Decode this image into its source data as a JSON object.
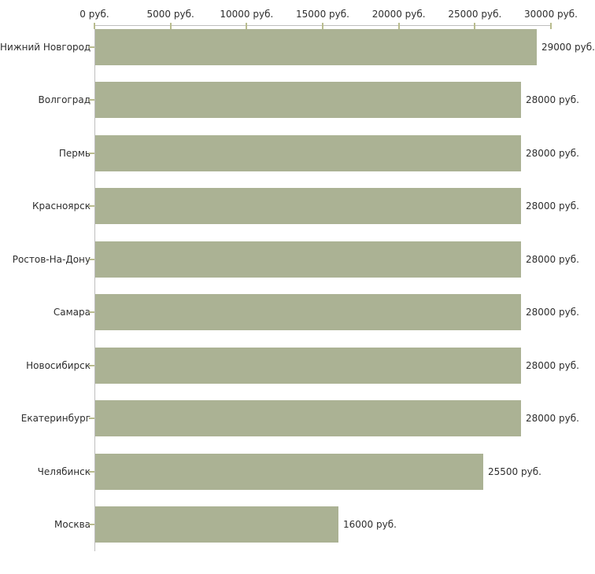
{
  "chart_data": {
    "type": "bar",
    "orientation": "horizontal",
    "title": "",
    "categories": [
      "Нижний Новгород",
      "Волгоград",
      "Пермь",
      "Красноярск",
      "Ростов-На-Дону",
      "Самара",
      "Новосибирск",
      "Екатеринбург",
      "Челябинск",
      "Москва"
    ],
    "values": [
      29000,
      28000,
      28000,
      28000,
      28000,
      28000,
      28000,
      28000,
      25500,
      16000
    ],
    "value_labels": [
      "29000 руб.",
      "28000 руб.",
      "28000 руб.",
      "28000 руб.",
      "28000 руб.",
      "28000 руб.",
      "28000 руб.",
      "28000 руб.",
      "25500 руб.",
      "16000 руб."
    ],
    "x_axis": {
      "position": "top",
      "min": 0,
      "max": 30000,
      "tick_step": 5000,
      "tick_labels": [
        "0 руб.",
        "5000 руб.",
        "10000 руб.",
        "15000 руб.",
        "20000 руб.",
        "25000 руб.",
        "30000 руб."
      ]
    },
    "unit": "руб.",
    "grid": false,
    "legend": false,
    "colors": {
      "bar": "#abb294",
      "axis_line": "#bebebe",
      "tick_mark": "#b9bc8e",
      "text": "#2e2e2e",
      "background": "#ffffff"
    }
  }
}
